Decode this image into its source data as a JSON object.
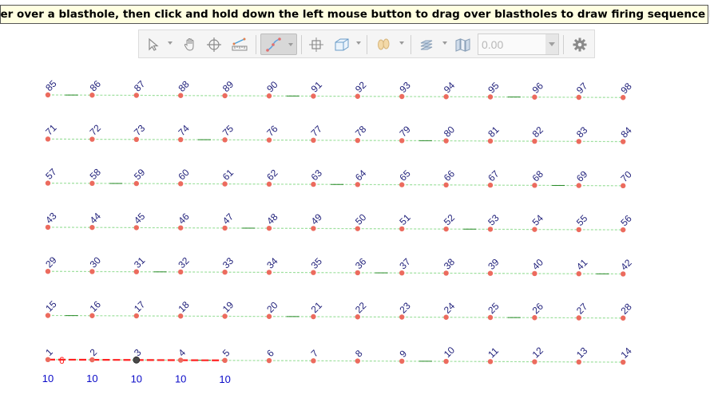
{
  "hint": "Hover over a blasthole, then click and hold down the left mouse button to drag over blastholes to draw firing sequence line",
  "toolbar": {
    "value": "0.00",
    "tools": [
      {
        "name": "select-arrow-icon"
      },
      {
        "name": "pan-hand-icon"
      },
      {
        "name": "crosshair-icon"
      },
      {
        "name": "measure-ruler-icon"
      },
      {
        "name": "sequence-line-icon",
        "active": true
      },
      {
        "name": "move-node-icon"
      },
      {
        "name": "3d-box-icon"
      },
      {
        "name": "footprints-icon"
      },
      {
        "name": "layers-icon"
      },
      {
        "name": "map-pages-icon"
      },
      {
        "name": "settings-gear-icon"
      }
    ]
  },
  "colors": {
    "hole": "#ec6b5e",
    "selected_hole": "#4a4a4a",
    "label": "#1f1f7a",
    "delay_label": "#0a0ac8",
    "connector_light": "#9fe09f",
    "connector_dark": "#2a8a2a",
    "sequence_line": "#ff2222"
  },
  "holes": {
    "rows": [
      [
        85,
        86,
        87,
        88,
        89,
        90,
        91,
        92,
        93,
        94,
        95,
        96,
        97,
        98
      ],
      [
        71,
        72,
        73,
        74,
        75,
        76,
        77,
        78,
        79,
        80,
        81,
        82,
        83,
        84
      ],
      [
        57,
        58,
        59,
        60,
        61,
        62,
        63,
        64,
        65,
        66,
        67,
        68,
        69,
        70
      ],
      [
        43,
        44,
        45,
        46,
        47,
        48,
        49,
        50,
        51,
        52,
        53,
        54,
        55,
        56
      ],
      [
        29,
        30,
        31,
        32,
        33,
        34,
        35,
        36,
        37,
        38,
        39,
        40,
        41,
        42
      ],
      [
        15,
        16,
        17,
        18,
        19,
        20,
        21,
        22,
        23,
        24,
        25,
        26,
        27,
        28
      ],
      [
        1,
        2,
        3,
        4,
        5,
        6,
        7,
        8,
        9,
        10,
        11,
        12,
        13,
        14
      ]
    ],
    "selected": 3
  },
  "sequence": {
    "holes": [
      1,
      2,
      3,
      4,
      5
    ],
    "delays": [
      "10",
      "10",
      "10",
      "10",
      "10"
    ],
    "marker": "6"
  }
}
